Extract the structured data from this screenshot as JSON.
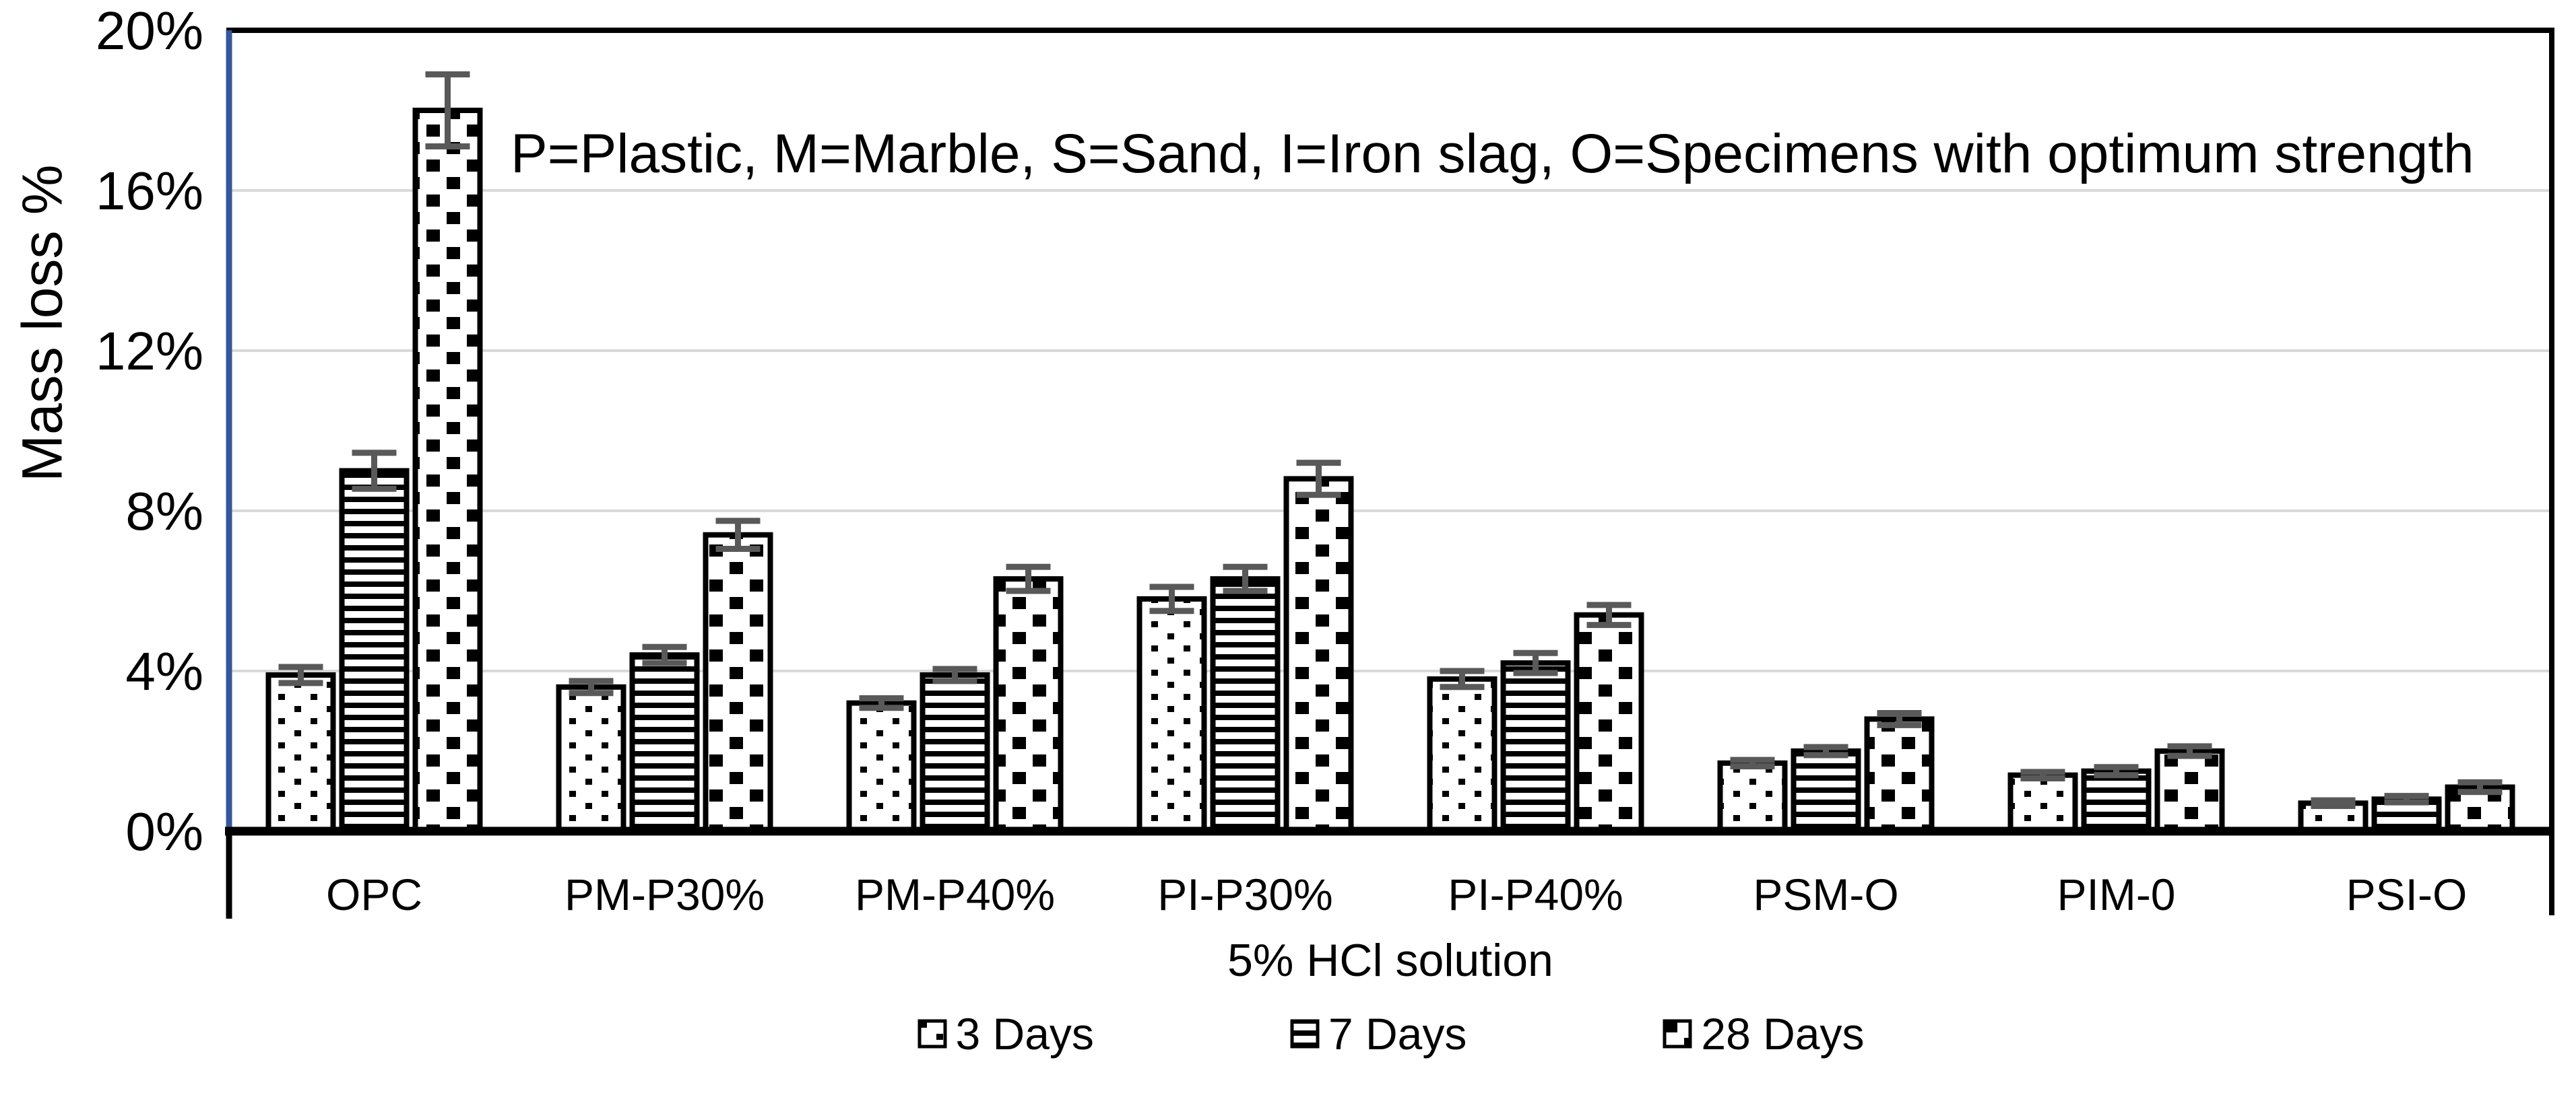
{
  "chart_data": {
    "type": "bar",
    "annotation": "P=Plastic, M=Marble, S=Sand, I=Iron slag, O=Specimens with optimum strength",
    "categories": [
      "OPC",
      "PM-P30%",
      "PM-P40%",
      "PI-P30%",
      "PI-P40%",
      "PSM-O",
      "PIM-0",
      "PSI-O"
    ],
    "series": [
      {
        "name": "3 Days",
        "pattern": "dots",
        "values": [
          3.9,
          3.6,
          3.2,
          5.8,
          3.8,
          1.7,
          1.4,
          0.7
        ],
        "errors": [
          0.2,
          0.15,
          0.12,
          0.3,
          0.2,
          0.08,
          0.08,
          0.07
        ]
      },
      {
        "name": "7 Days",
        "pattern": "hlines",
        "values": [
          9.0,
          4.4,
          3.9,
          6.3,
          4.2,
          2.0,
          1.5,
          0.8
        ],
        "errors": [
          0.45,
          0.2,
          0.15,
          0.3,
          0.25,
          0.1,
          0.1,
          0.08
        ]
      },
      {
        "name": "28 Days",
        "pattern": "checker",
        "values": [
          18.0,
          7.4,
          6.3,
          8.8,
          5.4,
          2.8,
          2.0,
          1.1
        ],
        "errors": [
          0.9,
          0.35,
          0.3,
          0.4,
          0.25,
          0.15,
          0.12,
          0.12
        ]
      }
    ],
    "ylabel": "Mass loss %",
    "xlabel": "5% HCl solution",
    "ylim": [
      0,
      20
    ],
    "yticks": [
      "0%",
      "4%",
      "8%",
      "12%",
      "16%",
      "20%"
    ],
    "ytick_values": [
      0,
      4,
      8,
      12,
      16,
      20
    ],
    "grid": true,
    "legend_position": "bottom",
    "error_bars": true
  },
  "colors": {
    "axis_blue": "#35579B",
    "grid": "#D9D9D9",
    "error_bar": "#595959",
    "bar_border": "#000000",
    "text": "#000000",
    "background": "#FFFFFF"
  }
}
